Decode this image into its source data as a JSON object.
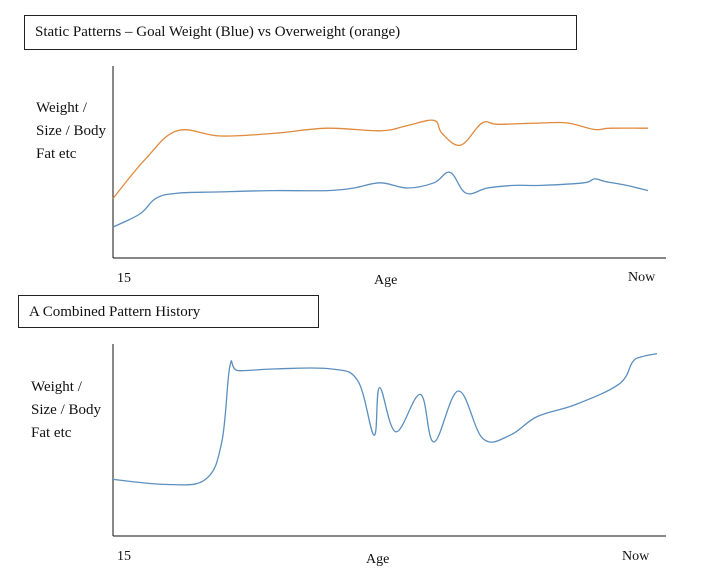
{
  "chart_data": [
    {
      "type": "line",
      "title": "Static Patterns – Goal Weight (Blue) vs Overweight (orange)",
      "ylabel": "Weight / Size / Body Fat etc",
      "xlabel": "Age",
      "x_ticks": [
        "15",
        "Now"
      ],
      "x_range": [
        0,
        1
      ],
      "y_range": [
        0,
        1
      ],
      "axis_ticks_numeric": false,
      "grid": false,
      "series": [
        {
          "color": "#5b8fbf",
          "x": [
            0,
            0.05,
            0.08,
            0.12,
            0.2,
            0.3,
            0.4,
            0.45,
            0.5,
            0.55,
            0.6,
            0.63,
            0.66,
            0.7,
            0.75,
            0.8,
            0.88,
            0.9,
            0.92,
            0.96,
            1.0
          ],
          "y": [
            0.1,
            0.2,
            0.32,
            0.36,
            0.37,
            0.38,
            0.38,
            0.4,
            0.44,
            0.4,
            0.44,
            0.52,
            0.36,
            0.4,
            0.42,
            0.42,
            0.44,
            0.47,
            0.45,
            0.42,
            0.38
          ]
        },
        {
          "color": "#e08a3c",
          "x": [
            0,
            0.06,
            0.12,
            0.2,
            0.3,
            0.4,
            0.5,
            0.55,
            0.6,
            0.615,
            0.65,
            0.69,
            0.72,
            0.8,
            0.85,
            0.9,
            0.93,
            1.0
          ],
          "y": [
            0.32,
            0.62,
            0.84,
            0.8,
            0.82,
            0.86,
            0.84,
            0.88,
            0.92,
            0.82,
            0.73,
            0.9,
            0.89,
            0.9,
            0.9,
            0.85,
            0.86,
            0.86
          ]
        }
      ]
    },
    {
      "type": "line",
      "title": "A Combined Pattern History",
      "ylabel": "Weight / Size / Body Fat etc",
      "xlabel": "Age",
      "x_ticks": [
        "15",
        "Now"
      ],
      "x_range": [
        0,
        1
      ],
      "y_range": [
        0,
        1
      ],
      "axis_ticks_numeric": false,
      "grid": false,
      "series": [
        {
          "color": "#5b8fbf",
          "x": [
            0,
            0.1,
            0.17,
            0.2,
            0.215,
            0.23,
            0.3,
            0.4,
            0.45,
            0.48,
            0.49,
            0.52,
            0.565,
            0.59,
            0.635,
            0.68,
            0.73,
            0.78,
            0.85,
            0.93,
            0.955,
            0.97,
            1.0
          ],
          "y": [
            0.18,
            0.15,
            0.18,
            0.4,
            0.85,
            0.82,
            0.83,
            0.83,
            0.76,
            0.44,
            0.72,
            0.46,
            0.68,
            0.4,
            0.7,
            0.42,
            0.44,
            0.55,
            0.62,
            0.74,
            0.87,
            0.9,
            0.92
          ]
        }
      ]
    }
  ]
}
